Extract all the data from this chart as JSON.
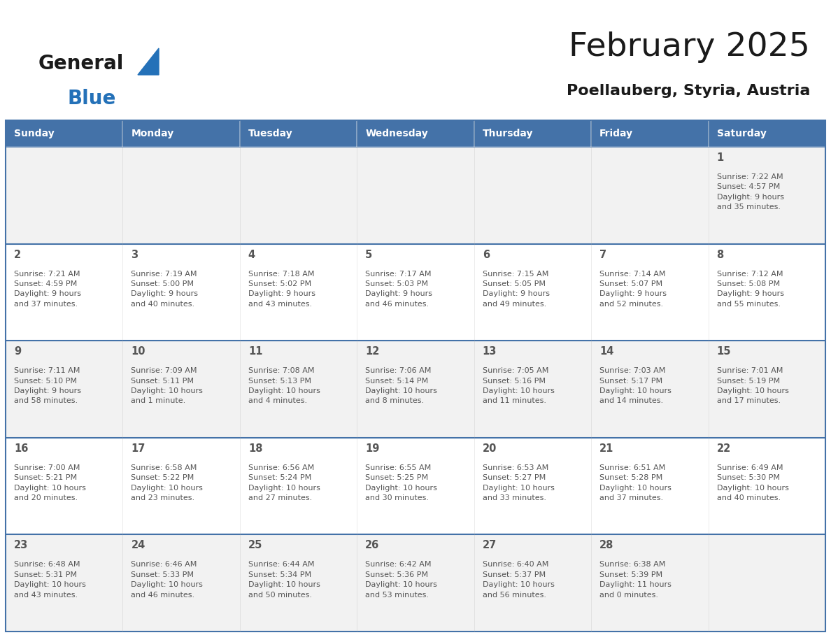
{
  "title": "February 2025",
  "subtitle": "Poellauberg, Styria, Austria",
  "days_of_week": [
    "Sunday",
    "Monday",
    "Tuesday",
    "Wednesday",
    "Thursday",
    "Friday",
    "Saturday"
  ],
  "header_bg": "#4472a8",
  "header_text_color": "#ffffff",
  "row_bg_even": "#f2f2f2",
  "row_bg_odd": "#ffffff",
  "cell_text_color": "#555555",
  "divider_color": "#4472a8",
  "title_color": "#1a1a1a",
  "subtitle_color": "#1a1a1a",
  "calendar_data": [
    [
      {
        "day": null,
        "info": null
      },
      {
        "day": null,
        "info": null
      },
      {
        "day": null,
        "info": null
      },
      {
        "day": null,
        "info": null
      },
      {
        "day": null,
        "info": null
      },
      {
        "day": null,
        "info": null
      },
      {
        "day": 1,
        "info": "Sunrise: 7:22 AM\nSunset: 4:57 PM\nDaylight: 9 hours\nand 35 minutes."
      }
    ],
    [
      {
        "day": 2,
        "info": "Sunrise: 7:21 AM\nSunset: 4:59 PM\nDaylight: 9 hours\nand 37 minutes."
      },
      {
        "day": 3,
        "info": "Sunrise: 7:19 AM\nSunset: 5:00 PM\nDaylight: 9 hours\nand 40 minutes."
      },
      {
        "day": 4,
        "info": "Sunrise: 7:18 AM\nSunset: 5:02 PM\nDaylight: 9 hours\nand 43 minutes."
      },
      {
        "day": 5,
        "info": "Sunrise: 7:17 AM\nSunset: 5:03 PM\nDaylight: 9 hours\nand 46 minutes."
      },
      {
        "day": 6,
        "info": "Sunrise: 7:15 AM\nSunset: 5:05 PM\nDaylight: 9 hours\nand 49 minutes."
      },
      {
        "day": 7,
        "info": "Sunrise: 7:14 AM\nSunset: 5:07 PM\nDaylight: 9 hours\nand 52 minutes."
      },
      {
        "day": 8,
        "info": "Sunrise: 7:12 AM\nSunset: 5:08 PM\nDaylight: 9 hours\nand 55 minutes."
      }
    ],
    [
      {
        "day": 9,
        "info": "Sunrise: 7:11 AM\nSunset: 5:10 PM\nDaylight: 9 hours\nand 58 minutes."
      },
      {
        "day": 10,
        "info": "Sunrise: 7:09 AM\nSunset: 5:11 PM\nDaylight: 10 hours\nand 1 minute."
      },
      {
        "day": 11,
        "info": "Sunrise: 7:08 AM\nSunset: 5:13 PM\nDaylight: 10 hours\nand 4 minutes."
      },
      {
        "day": 12,
        "info": "Sunrise: 7:06 AM\nSunset: 5:14 PM\nDaylight: 10 hours\nand 8 minutes."
      },
      {
        "day": 13,
        "info": "Sunrise: 7:05 AM\nSunset: 5:16 PM\nDaylight: 10 hours\nand 11 minutes."
      },
      {
        "day": 14,
        "info": "Sunrise: 7:03 AM\nSunset: 5:17 PM\nDaylight: 10 hours\nand 14 minutes."
      },
      {
        "day": 15,
        "info": "Sunrise: 7:01 AM\nSunset: 5:19 PM\nDaylight: 10 hours\nand 17 minutes."
      }
    ],
    [
      {
        "day": 16,
        "info": "Sunrise: 7:00 AM\nSunset: 5:21 PM\nDaylight: 10 hours\nand 20 minutes."
      },
      {
        "day": 17,
        "info": "Sunrise: 6:58 AM\nSunset: 5:22 PM\nDaylight: 10 hours\nand 23 minutes."
      },
      {
        "day": 18,
        "info": "Sunrise: 6:56 AM\nSunset: 5:24 PM\nDaylight: 10 hours\nand 27 minutes."
      },
      {
        "day": 19,
        "info": "Sunrise: 6:55 AM\nSunset: 5:25 PM\nDaylight: 10 hours\nand 30 minutes."
      },
      {
        "day": 20,
        "info": "Sunrise: 6:53 AM\nSunset: 5:27 PM\nDaylight: 10 hours\nand 33 minutes."
      },
      {
        "day": 21,
        "info": "Sunrise: 6:51 AM\nSunset: 5:28 PM\nDaylight: 10 hours\nand 37 minutes."
      },
      {
        "day": 22,
        "info": "Sunrise: 6:49 AM\nSunset: 5:30 PM\nDaylight: 10 hours\nand 40 minutes."
      }
    ],
    [
      {
        "day": 23,
        "info": "Sunrise: 6:48 AM\nSunset: 5:31 PM\nDaylight: 10 hours\nand 43 minutes."
      },
      {
        "day": 24,
        "info": "Sunrise: 6:46 AM\nSunset: 5:33 PM\nDaylight: 10 hours\nand 46 minutes."
      },
      {
        "day": 25,
        "info": "Sunrise: 6:44 AM\nSunset: 5:34 PM\nDaylight: 10 hours\nand 50 minutes."
      },
      {
        "day": 26,
        "info": "Sunrise: 6:42 AM\nSunset: 5:36 PM\nDaylight: 10 hours\nand 53 minutes."
      },
      {
        "day": 27,
        "info": "Sunrise: 6:40 AM\nSunset: 5:37 PM\nDaylight: 10 hours\nand 56 minutes."
      },
      {
        "day": 28,
        "info": "Sunrise: 6:38 AM\nSunset: 5:39 PM\nDaylight: 11 hours\nand 0 minutes."
      },
      {
        "day": null,
        "info": null
      }
    ]
  ],
  "logo_general_color": "#1a1a1a",
  "logo_blue_color": "#2471b8"
}
